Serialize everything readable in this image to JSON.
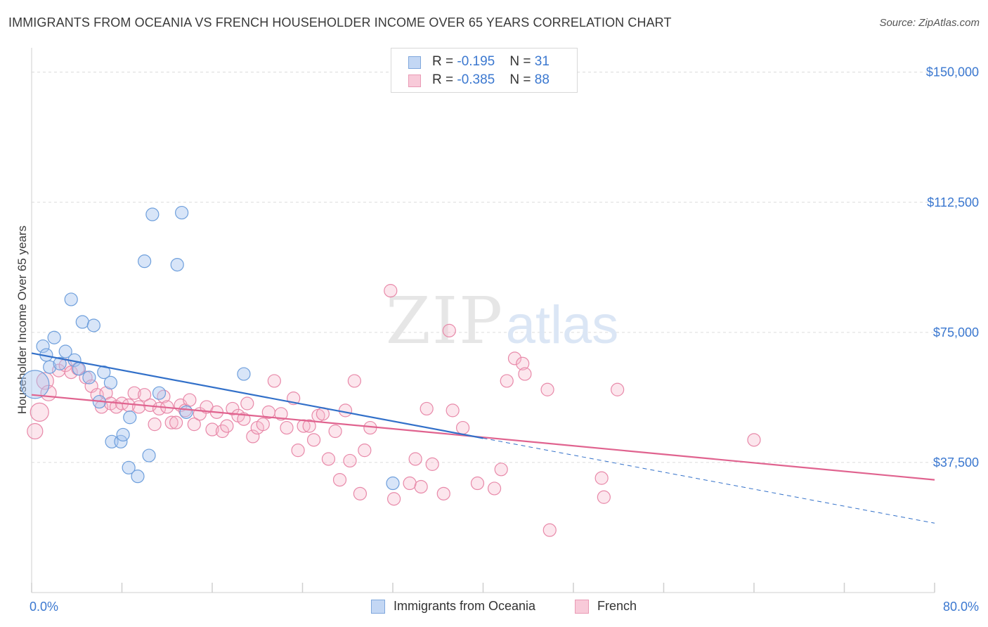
{
  "title": "IMMIGRANTS FROM OCEANIA VS FRENCH HOUSEHOLDER INCOME OVER 65 YEARS CORRELATION CHART",
  "source": "Source: ZipAtlas.com",
  "watermark": {
    "zip": "ZIP",
    "atlas": "atlas"
  },
  "legend": {
    "series1": {
      "r_label": "R = ",
      "r_value": "-0.195",
      "n_label": "N = ",
      "n_value": "31"
    },
    "series2": {
      "r_label": "R = ",
      "r_value": "-0.385",
      "n_label": "N = ",
      "n_value": "88"
    }
  },
  "bottom_legend": {
    "series1": "Immigrants from Oceania",
    "series2": "French"
  },
  "colors": {
    "series1_fill": "#a9c6ef",
    "series1_stroke": "#6e9fdc",
    "series1_line": "#3270c9",
    "series2_fill": "#f5b6cb",
    "series2_stroke": "#e889a9",
    "series2_line": "#e0638f",
    "tick_text": "#3b78d0",
    "grid": "#dcdcdc"
  },
  "chart_data": {
    "type": "scatter",
    "xlabel": "",
    "ylabel": "Householder Income Over 65 years",
    "xlim": [
      0,
      80
    ],
    "ylim": [
      0,
      155000
    ],
    "x_tick_labels": [
      "0.0%",
      "80.0%"
    ],
    "y_ticks": [
      37500,
      75000,
      112500,
      150000
    ],
    "y_tick_labels": [
      "$37,500",
      "$75,000",
      "$112,500",
      "$150,000"
    ],
    "grid": true,
    "legend_position": "top-center",
    "series": [
      {
        "name": "Immigrants from Oceania",
        "points": [
          [
            0.3,
            60000,
            20
          ],
          [
            1.0,
            71000,
            9
          ],
          [
            1.3,
            68500,
            9
          ],
          [
            1.6,
            65000,
            9
          ],
          [
            2.0,
            73500,
            9
          ],
          [
            2.5,
            66000,
            9
          ],
          [
            3.0,
            69500,
            9
          ],
          [
            3.5,
            84500,
            9
          ],
          [
            3.8,
            67000,
            9
          ],
          [
            4.2,
            64500,
            9
          ],
          [
            4.5,
            78000,
            9
          ],
          [
            5.1,
            62000,
            9
          ],
          [
            5.5,
            77000,
            9
          ],
          [
            6.0,
            55000,
            9
          ],
          [
            6.4,
            63500,
            9
          ],
          [
            7.0,
            60500,
            9
          ],
          [
            7.1,
            43500,
            9
          ],
          [
            7.9,
            43500,
            9
          ],
          [
            8.1,
            45500,
            9
          ],
          [
            8.6,
            36000,
            9
          ],
          [
            8.7,
            50500,
            9
          ],
          [
            9.4,
            33500,
            9
          ],
          [
            10.0,
            95500,
            9
          ],
          [
            10.4,
            39500,
            9
          ],
          [
            10.7,
            109000,
            9
          ],
          [
            11.3,
            57500,
            9
          ],
          [
            12.9,
            94500,
            9
          ],
          [
            13.3,
            109500,
            9
          ],
          [
            13.7,
            52000,
            9
          ],
          [
            18.8,
            63000,
            9
          ],
          [
            32.0,
            31500,
            9
          ]
        ],
        "trend": {
          "x": [
            0,
            40
          ],
          "y": [
            69000,
            44500
          ]
        },
        "trend_dashed": {
          "x": [
            40,
            80
          ],
          "y": [
            44500,
            20000
          ]
        }
      },
      {
        "name": "French",
        "points": [
          [
            0.3,
            46500,
            11
          ],
          [
            0.7,
            52000,
            13
          ],
          [
            1.2,
            61000,
            12
          ],
          [
            1.5,
            57500,
            11
          ],
          [
            2.4,
            64000,
            9
          ],
          [
            3.0,
            65500,
            9
          ],
          [
            3.5,
            63500,
            9
          ],
          [
            4.1,
            64500,
            9
          ],
          [
            4.8,
            62000,
            9
          ],
          [
            5.3,
            59500,
            9
          ],
          [
            5.8,
            57000,
            9
          ],
          [
            6.2,
            53500,
            9
          ],
          [
            6.6,
            57500,
            9
          ],
          [
            7.0,
            54500,
            9
          ],
          [
            7.5,
            53500,
            9
          ],
          [
            8.0,
            54500,
            9
          ],
          [
            8.6,
            54000,
            9
          ],
          [
            9.1,
            57500,
            9
          ],
          [
            9.5,
            53500,
            9
          ],
          [
            10.0,
            57000,
            9
          ],
          [
            10.5,
            54000,
            9
          ],
          [
            10.9,
            48500,
            9
          ],
          [
            11.3,
            53000,
            9
          ],
          [
            11.7,
            56500,
            9
          ],
          [
            12.0,
            53500,
            9
          ],
          [
            12.4,
            49000,
            9
          ],
          [
            12.8,
            49000,
            9
          ],
          [
            13.2,
            54000,
            9
          ],
          [
            13.6,
            52500,
            9
          ],
          [
            14.0,
            55500,
            9
          ],
          [
            14.4,
            48500,
            9
          ],
          [
            14.9,
            51500,
            9
          ],
          [
            15.5,
            53500,
            9
          ],
          [
            16.0,
            47000,
            9
          ],
          [
            16.4,
            52000,
            9
          ],
          [
            16.9,
            46500,
            9
          ],
          [
            17.3,
            48000,
            9
          ],
          [
            17.8,
            53000,
            9
          ],
          [
            18.3,
            51000,
            9
          ],
          [
            18.8,
            50000,
            9
          ],
          [
            19.1,
            54500,
            9
          ],
          [
            19.6,
            45000,
            9
          ],
          [
            20.0,
            47500,
            9
          ],
          [
            20.5,
            48500,
            9
          ],
          [
            21.0,
            52000,
            9
          ],
          [
            21.5,
            61000,
            9
          ],
          [
            22.1,
            51500,
            9
          ],
          [
            22.6,
            47500,
            9
          ],
          [
            23.2,
            56000,
            9
          ],
          [
            23.6,
            41000,
            9
          ],
          [
            24.1,
            48000,
            9
          ],
          [
            24.6,
            48000,
            9
          ],
          [
            25.0,
            44000,
            9
          ],
          [
            25.4,
            51000,
            9
          ],
          [
            25.8,
            51500,
            9
          ],
          [
            26.3,
            38500,
            9
          ],
          [
            26.9,
            46500,
            9
          ],
          [
            27.3,
            32500,
            9
          ],
          [
            27.8,
            52500,
            9
          ],
          [
            28.2,
            38000,
            9
          ],
          [
            28.6,
            61000,
            9
          ],
          [
            29.1,
            28500,
            9
          ],
          [
            29.5,
            41000,
            9
          ],
          [
            30.0,
            47500,
            9
          ],
          [
            31.8,
            87000,
            9
          ],
          [
            32.1,
            27000,
            9
          ],
          [
            33.5,
            31500,
            9
          ],
          [
            34.0,
            38500,
            9
          ],
          [
            34.5,
            30500,
            9
          ],
          [
            35.0,
            53000,
            9
          ],
          [
            35.5,
            37000,
            9
          ],
          [
            36.5,
            28500,
            9
          ],
          [
            37.0,
            75500,
            9
          ],
          [
            37.3,
            52500,
            9
          ],
          [
            38.2,
            47500,
            9
          ],
          [
            39.5,
            31500,
            9
          ],
          [
            41.0,
            30000,
            9
          ],
          [
            41.6,
            35500,
            9
          ],
          [
            42.1,
            61000,
            9
          ],
          [
            42.8,
            67500,
            9
          ],
          [
            43.5,
            66000,
            9
          ],
          [
            43.7,
            63000,
            9
          ],
          [
            45.7,
            58500,
            9
          ],
          [
            45.9,
            18000,
            9
          ],
          [
            50.5,
            33000,
            9
          ],
          [
            50.7,
            27500,
            9
          ],
          [
            51.9,
            58500,
            9
          ],
          [
            64.0,
            44000,
            9
          ]
        ],
        "trend": {
          "x": [
            0,
            80
          ],
          "y": [
            57000,
            32500
          ]
        }
      }
    ]
  }
}
